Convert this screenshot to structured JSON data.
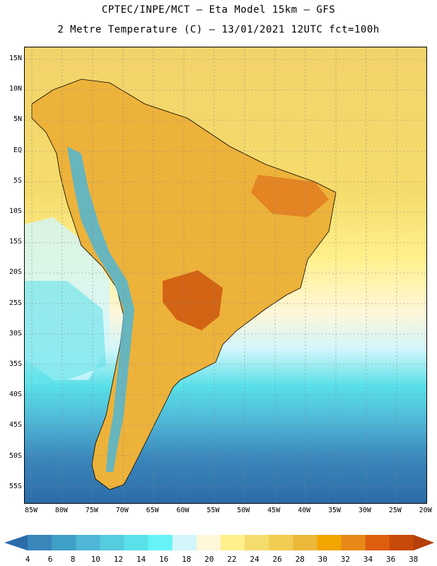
{
  "header": {
    "line1": "CPTEC/INPE/MCT –  Eta Model 15km – GFS",
    "line2": "2 Metre Temperature (C) – 13/01/2021 12UTC fct=100h"
  },
  "map": {
    "lat_labels": [
      "15N",
      "10N",
      "5N",
      "EQ",
      "5S",
      "10S",
      "15S",
      "20S",
      "25S",
      "30S",
      "35S",
      "40S",
      "45S",
      "50S",
      "55S"
    ],
    "lon_labels": [
      "85W",
      "80W",
      "75W",
      "70W",
      "65W",
      "60W",
      "55W",
      "50W",
      "45W",
      "40W",
      "35W",
      "30W",
      "25W",
      "20W"
    ]
  },
  "colorbar": {
    "labels": [
      "4",
      "6",
      "8",
      "10",
      "12",
      "14",
      "16",
      "18",
      "20",
      "22",
      "24",
      "26",
      "28",
      "30",
      "32",
      "34",
      "36",
      "38"
    ],
    "colors": [
      "#2b6ba8",
      "#3a86bb",
      "#3f9fc6",
      "#4fb6d6",
      "#55cddf",
      "#59e0e8",
      "#66f3f6",
      "#d2f6fb",
      "#fff7d9",
      "#fff08c",
      "#f6dc6c",
      "#f1cc52",
      "#ecb83a",
      "#f2a500",
      "#e78818",
      "#dd5e0e",
      "#c84a08",
      "#b4400a"
    ]
  }
}
